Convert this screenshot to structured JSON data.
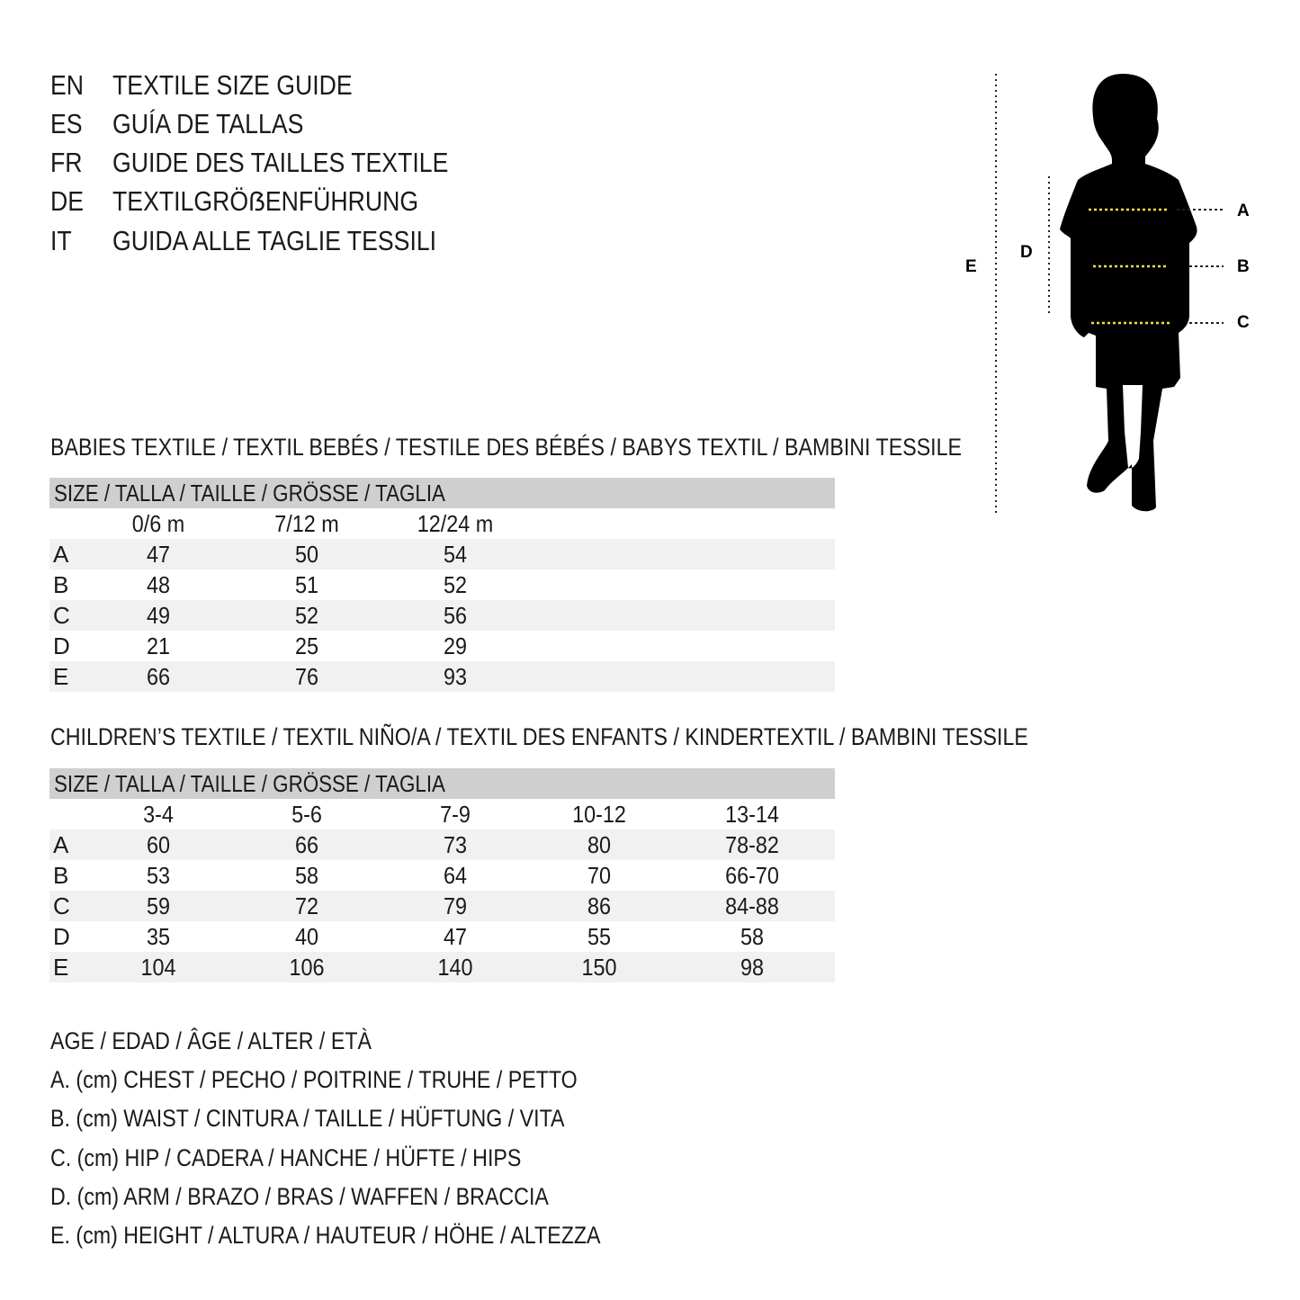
{
  "titles": [
    {
      "code": "EN",
      "text": "TEXTILE SIZE GUIDE"
    },
    {
      "code": "ES",
      "text": "GUÍA DE TALLAS"
    },
    {
      "code": "FR",
      "text": "GUIDE DES TAILLES TEXTILE"
    },
    {
      "code": "DE",
      "text": "TEXTILGRÖẞENFÜHRUNG"
    },
    {
      "code": "IT",
      "text": "GUIDA ALLE TAGLIE TESSILI"
    }
  ],
  "figure": {
    "labels": {
      "A": "A",
      "B": "B",
      "C": "C",
      "D": "D",
      "E": "E"
    },
    "accent_color": "#f2e03a"
  },
  "babies": {
    "title": "BABIES TEXTILE / TEXTIL BEBÉS / TESTILE DES BÉBÉS / BABYS TEXTIL / BAMBINI TESSILE",
    "header": "SIZE / TALLA / TAILLE / GRÖSSE / TAGLIA",
    "columns": [
      "0/6 m",
      "7/12 m",
      "12/24 m"
    ],
    "rows": [
      {
        "label": "A",
        "values": [
          "47",
          "50",
          "54"
        ]
      },
      {
        "label": "B",
        "values": [
          "48",
          "51",
          "52"
        ]
      },
      {
        "label": "C",
        "values": [
          "49",
          "52",
          "56"
        ]
      },
      {
        "label": "D",
        "values": [
          "21",
          "25",
          "29"
        ]
      },
      {
        "label": "E",
        "values": [
          "66",
          "76",
          "93"
        ]
      }
    ]
  },
  "children": {
    "title": "CHILDREN’S TEXTILE / TEXTIL NIÑO/A / TEXTIL DES ENFANTS / KINDERTEXTIL / BAMBINI TESSILE",
    "header": "SIZE / TALLA / TAILLE / GRÖSSE / TAGLIA",
    "columns": [
      "3-4",
      "5-6",
      "7-9",
      "10-12",
      "13-14"
    ],
    "rows": [
      {
        "label": "A",
        "values": [
          "60",
          "66",
          "73",
          "80",
          "78-82"
        ]
      },
      {
        "label": "B",
        "values": [
          "53",
          "58",
          "64",
          "70",
          "66-70"
        ]
      },
      {
        "label": "C",
        "values": [
          "59",
          "72",
          "79",
          "86",
          "84-88"
        ]
      },
      {
        "label": "D",
        "values": [
          "35",
          "40",
          "47",
          "55",
          "58"
        ]
      },
      {
        "label": "E",
        "values": [
          "104",
          "106",
          "140",
          "150",
          "98"
        ]
      }
    ]
  },
  "legend": [
    "AGE / EDAD / ÂGE / ALTER / ETÀ",
    "A. (cm) CHEST / PECHO / POITRINE / TRUHE / PETTO",
    "B. (cm) WAIST / CINTURA / TAILLE / HÜFTUNG / VITA",
    "C. (cm) HIP / CADERA / HANCHE / HÜFTE / HIPS",
    "D. (cm) ARM / BRAZO / BRAS / WAFFEN / BRACCIA",
    "E. (cm) HEIGHT / ALTURA / HAUTEUR / HÖHE / ALTEZZA"
  ]
}
